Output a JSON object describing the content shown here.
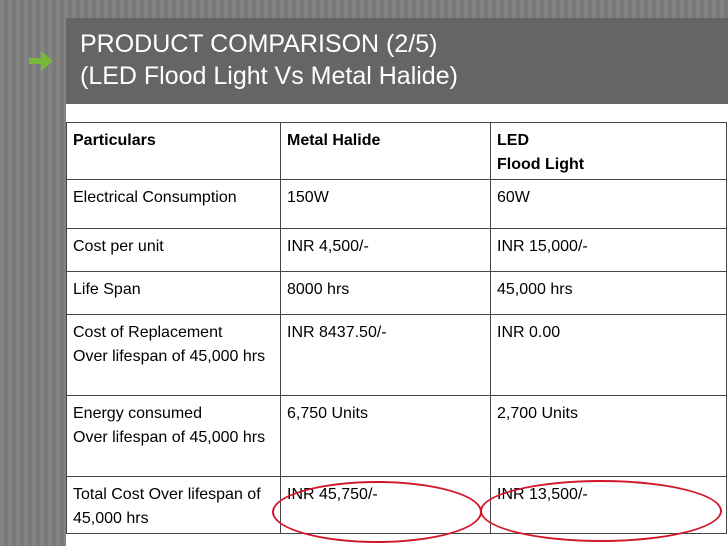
{
  "title": {
    "line1": "PRODUCT COMPARISON (2/5)",
    "line2": "(LED Flood Light Vs Metal Halide)"
  },
  "colors": {
    "background_band": "#7a7a7a",
    "title_bar": "#656565",
    "arrow": "#7ab83c",
    "highlight_circle": "#d0172a"
  },
  "icons": {
    "bullet": "arrow-right-icon"
  },
  "table": {
    "headers": {
      "col1": "Particulars",
      "col2": "Metal Halide",
      "col3_line1": "LED",
      "col3_line2": "Flood Light"
    },
    "rows": [
      {
        "particular": "Electrical Consumption",
        "metal_halide": "150W",
        "led": "60W"
      },
      {
        "particular": "Cost per unit",
        "metal_halide": "INR 4,500/-",
        "led": "INR 15,000/-"
      },
      {
        "particular": "Life Span",
        "metal_halide": "8000 hrs",
        "led": "45,000 hrs"
      },
      {
        "particular": "Cost of Replacement",
        "particular_sub": "Over lifespan of 45,000 hrs",
        "metal_halide": "INR 8437.50/-",
        "led": "INR 0.00"
      },
      {
        "particular": "Energy consumed",
        "particular_sub": "Over lifespan of 45,000 hrs",
        "metal_halide": "6,750 Units",
        "led": "2,700 Units"
      },
      {
        "particular": "Total Cost Over lifespan of 45,000 hrs",
        "metal_halide": "INR 45,750/-",
        "led": "INR 13,500/-"
      }
    ]
  }
}
